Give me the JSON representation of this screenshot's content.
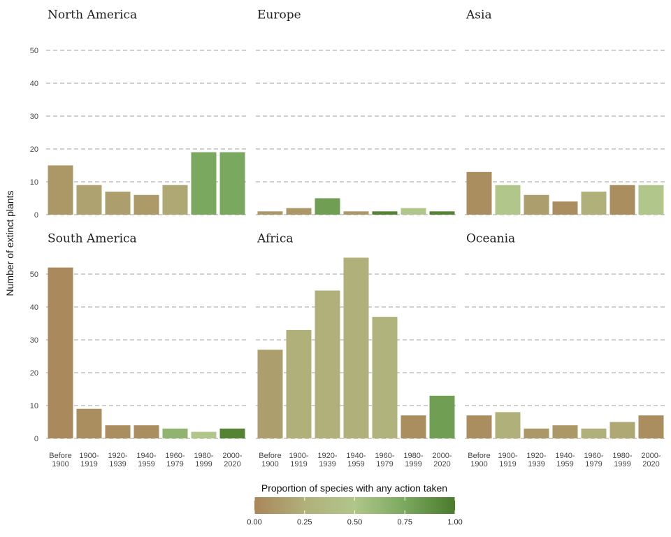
{
  "chart_data": {
    "type": "bar",
    "ylabel": "Number of extinct plants",
    "ylim": [
      0,
      55
    ],
    "yticks": [
      0,
      10,
      20,
      30,
      40,
      50
    ],
    "categories": [
      "Before\n1900",
      "1900-\n1919",
      "1920-\n1939",
      "1940-\n1959",
      "1960-\n1979",
      "1980-\n1999",
      "2000-\n2020"
    ],
    "grid": true,
    "panels": [
      {
        "title": "North America",
        "values": [
          15,
          9,
          7,
          6,
          9,
          19,
          19
        ],
        "action_proportion": [
          0.1,
          0.17,
          0.15,
          0.12,
          0.2,
          0.75,
          0.75
        ]
      },
      {
        "title": "Europe",
        "values": [
          1,
          2,
          5,
          1,
          1,
          2,
          1
        ],
        "action_proportion": [
          0.1,
          0.1,
          0.8,
          0.1,
          0.95,
          0.5,
          0.95
        ]
      },
      {
        "title": "Asia",
        "values": [
          13,
          9,
          6,
          4,
          7,
          9,
          9
        ],
        "action_proportion": [
          0.05,
          0.5,
          0.15,
          0.05,
          0.25,
          0.05,
          0.5
        ]
      },
      {
        "title": "South America",
        "values": [
          52,
          9,
          4,
          4,
          3,
          2,
          3
        ],
        "action_proportion": [
          0.02,
          0.05,
          0.05,
          0.05,
          0.65,
          0.5,
          0.95
        ]
      },
      {
        "title": "Africa",
        "values": [
          27,
          33,
          45,
          55,
          37,
          7,
          13
        ],
        "action_proportion": [
          0.15,
          0.25,
          0.25,
          0.25,
          0.28,
          0.05,
          0.8
        ]
      },
      {
        "title": "Oceania",
        "values": [
          7,
          8,
          3,
          4,
          3,
          5,
          7
        ],
        "action_proportion": [
          0.05,
          0.25,
          0.1,
          0.1,
          0.25,
          0.2,
          0.05
        ]
      }
    ],
    "legend": {
      "title": "Proportion of species with any action taken",
      "ticks": [
        "0.00",
        "0.25",
        "0.50",
        "0.75",
        "1.00"
      ],
      "placement": "bottom",
      "colors": [
        "#a9865a",
        "#b0b07a",
        "#b0c68a",
        "#7aa85e",
        "#4a7a2a"
      ]
    }
  }
}
